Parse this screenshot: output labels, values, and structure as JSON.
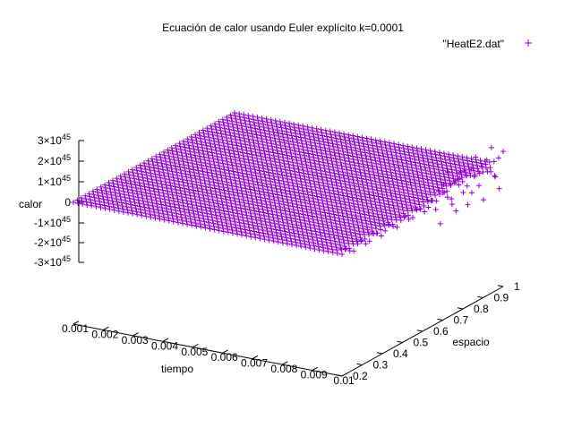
{
  "chart_data": {
    "type": "scatter",
    "title": "Ecuación de calor usando Euler explícito k=0.0001",
    "legend": {
      "label": "\"HeatE2.dat\"",
      "placement": "top-right"
    },
    "series": [
      {
        "name": "\"HeatE2.dat\"",
        "color": "#9400d3",
        "marker": "plus"
      }
    ],
    "xlabel": "tiempo",
    "ylabel": "espacio",
    "zlabel": "calor",
    "xlim": [
      0.001,
      0.01
    ],
    "ylim": [
      0.2,
      1
    ],
    "zlim": [
      -3e+45,
      3e+45
    ],
    "x_ticks": [
      "0.001",
      "0.002",
      "0.003",
      "0.004",
      "0.005",
      "0.006",
      "0.007",
      "0.008",
      "0.009",
      "0.01"
    ],
    "y_ticks": [
      "0.2",
      "0.3",
      "0.4",
      "0.5",
      "0.6",
      "0.7",
      "0.8",
      "0.9",
      "1"
    ],
    "z_ticks": [
      {
        "mantissa": "3",
        "exp": "45"
      },
      {
        "mantissa": "2",
        "exp": "45"
      },
      {
        "mantissa": "1",
        "exp": "45"
      },
      {
        "mantissa": "0",
        "exp": ""
      },
      {
        "mantissa": "-1",
        "exp": "45"
      },
      {
        "mantissa": "-2",
        "exp": "45"
      },
      {
        "mantissa": "-3",
        "exp": "45"
      }
    ],
    "surface": {
      "description_values": "values near 0 across the grid; growing oscillation at largest tiempo near espacio=1",
      "tiempo_range": [
        0.001,
        0.01
      ],
      "espacio_range": [
        0.2,
        1
      ],
      "calor_typical": 0,
      "edge_oscillation_max": 1.2e+45,
      "edge_oscillation_min": -1.1e+45
    }
  }
}
